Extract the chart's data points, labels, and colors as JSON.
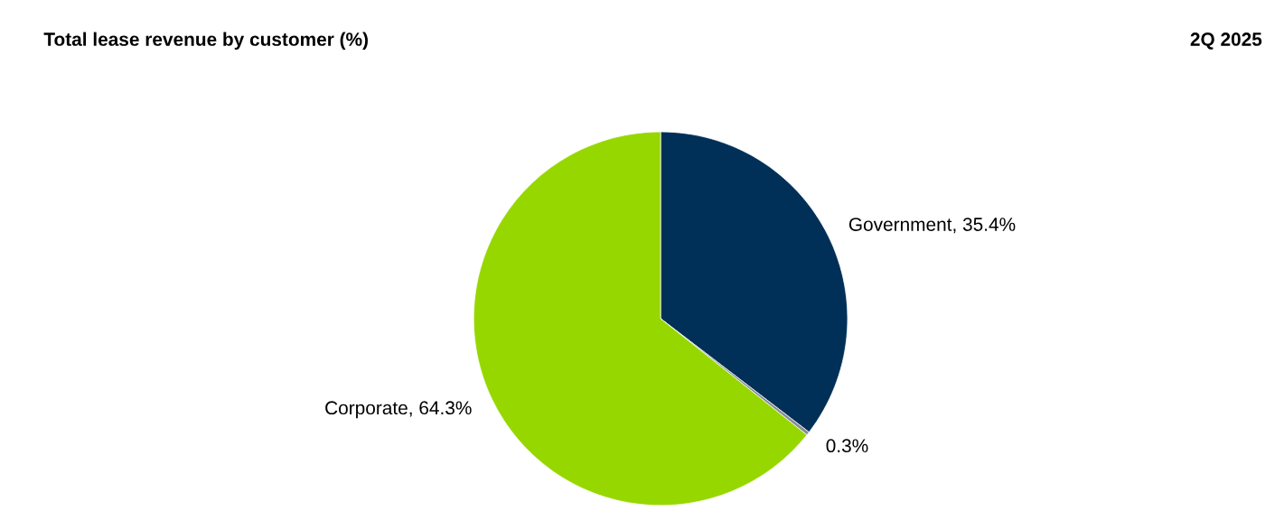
{
  "chart_data": {
    "type": "pie",
    "title": "Total lease revenue by customer (%)",
    "subtitle": "2Q 2025",
    "categories": [
      "Government",
      null,
      "Corporate"
    ],
    "values": [
      35.4,
      0.3,
      64.3
    ],
    "colors": [
      "#003057",
      "#8a8d99",
      "#97d700"
    ],
    "value_labels": [
      "35.4%",
      "0.3%",
      "64.3%"
    ],
    "legend": false
  }
}
